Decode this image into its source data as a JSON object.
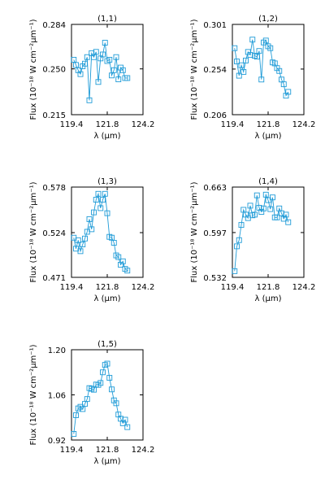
{
  "chart_data": [
    {
      "type": "line",
      "title": "(1,1)",
      "xlabel": "λ (μm)",
      "ylabel": "Flux (10⁻¹⁸ W cm⁻²μm⁻¹)",
      "xlim": [
        119.4,
        124.2
      ],
      "ylim": [
        0.215,
        0.284
      ],
      "xticks": [
        119.4,
        121.8,
        124.2
      ],
      "xtick_labels": [
        "119.4",
        "121.8",
        "124.2"
      ],
      "yticks": [
        0.215,
        0.25,
        0.284
      ],
      "ytick_labels": [
        "0.215",
        "0.250",
        "0.284"
      ],
      "grid": false,
      "series": [
        {
          "x": [
            119.55,
            119.7,
            119.85,
            120.0,
            120.15,
            120.3,
            120.45,
            120.6,
            120.75,
            120.9,
            121.05,
            121.2,
            121.35,
            121.5,
            121.65,
            121.8,
            121.95,
            122.1,
            122.25,
            122.4,
            122.55,
            122.7,
            122.85,
            123.0,
            123.15
          ],
          "y": [
            0.257,
            0.253,
            0.249,
            0.246,
            0.252,
            0.254,
            0.259,
            0.226,
            0.262,
            0.259,
            0.263,
            0.24,
            0.258,
            0.261,
            0.27,
            0.256,
            0.257,
            0.245,
            0.249,
            0.259,
            0.242,
            0.251,
            0.249,
            0.243,
            0.243
          ]
        }
      ]
    },
    {
      "type": "line",
      "title": "(1,2)",
      "xlabel": "λ (μm)",
      "ylabel": "Flux (10⁻¹⁸ W cm⁻²μm⁻¹)",
      "xlim": [
        119.4,
        124.2
      ],
      "ylim": [
        0.206,
        0.301
      ],
      "xticks": [
        119.4,
        121.8,
        124.2
      ],
      "xtick_labels": [
        "119.4",
        "121.8",
        "124.2"
      ],
      "yticks": [
        0.206,
        0.254,
        0.301
      ],
      "ytick_labels": [
        "0.206",
        "0.254",
        "0.301"
      ],
      "grid": false,
      "series": [
        {
          "x": [
            119.55,
            119.7,
            119.85,
            120.0,
            120.15,
            120.3,
            120.45,
            120.6,
            120.75,
            120.9,
            121.05,
            121.2,
            121.35,
            121.5,
            121.65,
            121.8,
            121.95,
            122.1,
            122.25,
            122.4,
            122.55,
            122.7,
            122.85,
            123.0,
            123.15
          ],
          "y": [
            0.276,
            0.262,
            0.247,
            0.258,
            0.251,
            0.263,
            0.272,
            0.269,
            0.285,
            0.268,
            0.267,
            0.273,
            0.243,
            0.282,
            0.284,
            0.278,
            0.276,
            0.261,
            0.26,
            0.255,
            0.252,
            0.243,
            0.238,
            0.226,
            0.23
          ]
        }
      ]
    },
    {
      "type": "line",
      "title": "(1,3)",
      "xlabel": "λ (μm)",
      "ylabel": "Flux (10⁻¹⁸ W cm⁻²μm⁻¹)",
      "xlim": [
        119.4,
        124.2
      ],
      "ylim": [
        0.471,
        0.578
      ],
      "xticks": [
        119.4,
        121.8,
        124.2
      ],
      "xtick_labels": [
        "119.4",
        "121.8",
        "124.2"
      ],
      "yticks": [
        0.471,
        0.524,
        0.578
      ],
      "ytick_labels": [
        "0.471",
        "0.524",
        "0.578"
      ],
      "grid": false,
      "series": [
        {
          "x": [
            119.55,
            119.7,
            119.85,
            120.0,
            120.15,
            120.3,
            120.45,
            120.6,
            120.75,
            120.9,
            121.05,
            121.2,
            121.35,
            121.5,
            121.65,
            121.8,
            121.95,
            122.1,
            122.25,
            122.4,
            122.55,
            122.7,
            122.85,
            123.0,
            123.15
          ],
          "y": [
            0.518,
            0.505,
            0.515,
            0.502,
            0.51,
            0.517,
            0.525,
            0.54,
            0.528,
            0.548,
            0.563,
            0.57,
            0.553,
            0.563,
            0.57,
            0.547,
            0.519,
            0.518,
            0.512,
            0.497,
            0.495,
            0.486,
            0.49,
            0.481,
            0.479
          ]
        }
      ]
    },
    {
      "type": "line",
      "title": "(1,4)",
      "xlabel": "λ (μm)",
      "ylabel": "Flux (10⁻¹⁸ W cm⁻²μm⁻¹)",
      "xlim": [
        119.4,
        124.2
      ],
      "ylim": [
        0.532,
        0.663
      ],
      "xticks": [
        119.4,
        121.8,
        124.2
      ],
      "xtick_labels": [
        "119.4",
        "121.8",
        "124.2"
      ],
      "yticks": [
        0.532,
        0.597,
        0.663
      ],
      "ytick_labels": [
        "0.532",
        "0.597",
        "0.663"
      ],
      "grid": false,
      "series": [
        {
          "x": [
            119.55,
            119.7,
            119.85,
            120.0,
            120.15,
            120.3,
            120.45,
            120.6,
            120.75,
            120.9,
            121.05,
            121.2,
            121.35,
            121.5,
            121.65,
            121.8,
            121.95,
            122.1,
            122.25,
            122.4,
            122.55,
            122.7,
            122.85,
            123.0,
            123.15
          ],
          "y": [
            0.541,
            0.577,
            0.586,
            0.608,
            0.63,
            0.623,
            0.618,
            0.636,
            0.622,
            0.623,
            0.651,
            0.633,
            0.627,
            0.632,
            0.652,
            0.644,
            0.631,
            0.648,
            0.619,
            0.619,
            0.632,
            0.625,
            0.617,
            0.623,
            0.612
          ]
        }
      ]
    },
    {
      "type": "line",
      "title": "(1,5)",
      "xlabel": "λ (μm)",
      "ylabel": "Flux (10⁻¹⁸ W cm⁻²μm⁻¹)",
      "xlim": [
        119.4,
        124.2
      ],
      "ylim": [
        0.92,
        1.2
      ],
      "xticks": [
        119.4,
        121.8,
        124.2
      ],
      "xtick_labels": [
        "119.4",
        "121.8",
        "124.2"
      ],
      "yticks": [
        0.92,
        1.06,
        1.2
      ],
      "ytick_labels": [
        "0.92",
        "1.06",
        "1.20"
      ],
      "grid": false,
      "series": [
        {
          "x": [
            119.55,
            119.7,
            119.85,
            120.0,
            120.15,
            120.3,
            120.45,
            120.6,
            120.75,
            120.9,
            121.05,
            121.2,
            121.35,
            121.5,
            121.65,
            121.8,
            121.95,
            122.1,
            122.25,
            122.4,
            122.55,
            122.7,
            122.85,
            123.0,
            123.15
          ],
          "y": [
            0.939,
            0.997,
            1.018,
            1.023,
            1.016,
            1.032,
            1.047,
            1.081,
            1.079,
            1.076,
            1.092,
            1.091,
            1.097,
            1.13,
            1.153,
            1.157,
            1.113,
            1.077,
            1.043,
            1.034,
            0.999,
            0.986,
            0.972,
            0.983,
            0.96
          ]
        }
      ]
    }
  ]
}
